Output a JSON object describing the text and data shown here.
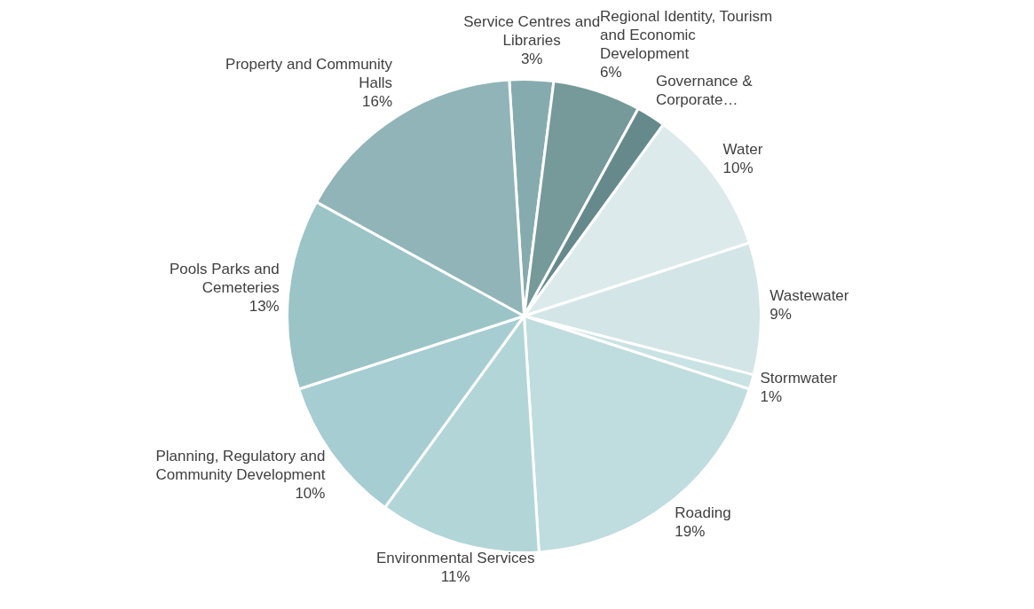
{
  "chart_data": {
    "type": "pie",
    "categories": [
      "Service Centres and Libraries",
      "Regional Identity, Tourism and Economic Development",
      "Governance & Corporate…",
      "Water",
      "Wastewater",
      "Stormwater",
      "Roading",
      "Environmental Services",
      "Planning, Regulatory and Community Development",
      "Pools Parks and Cemeteries",
      "Property and Community Halls"
    ],
    "values": [
      3,
      6,
      2,
      10,
      9,
      1,
      19,
      11,
      10,
      13,
      16
    ],
    "value_labels": [
      "3%",
      "6%",
      null,
      "10%",
      "9%",
      "1%",
      "19%",
      "11%",
      "10%",
      "13%",
      "16%"
    ],
    "colors": [
      "#86abae",
      "#76999a",
      "#668a8b",
      "#ddeaeb",
      "#d3e5e6",
      "#c9e2e3",
      "#bfdcdf",
      "#b2d5d8",
      "#a6cdd1",
      "#9bc4c7",
      "#90b4b8"
    ],
    "legend": false
  }
}
